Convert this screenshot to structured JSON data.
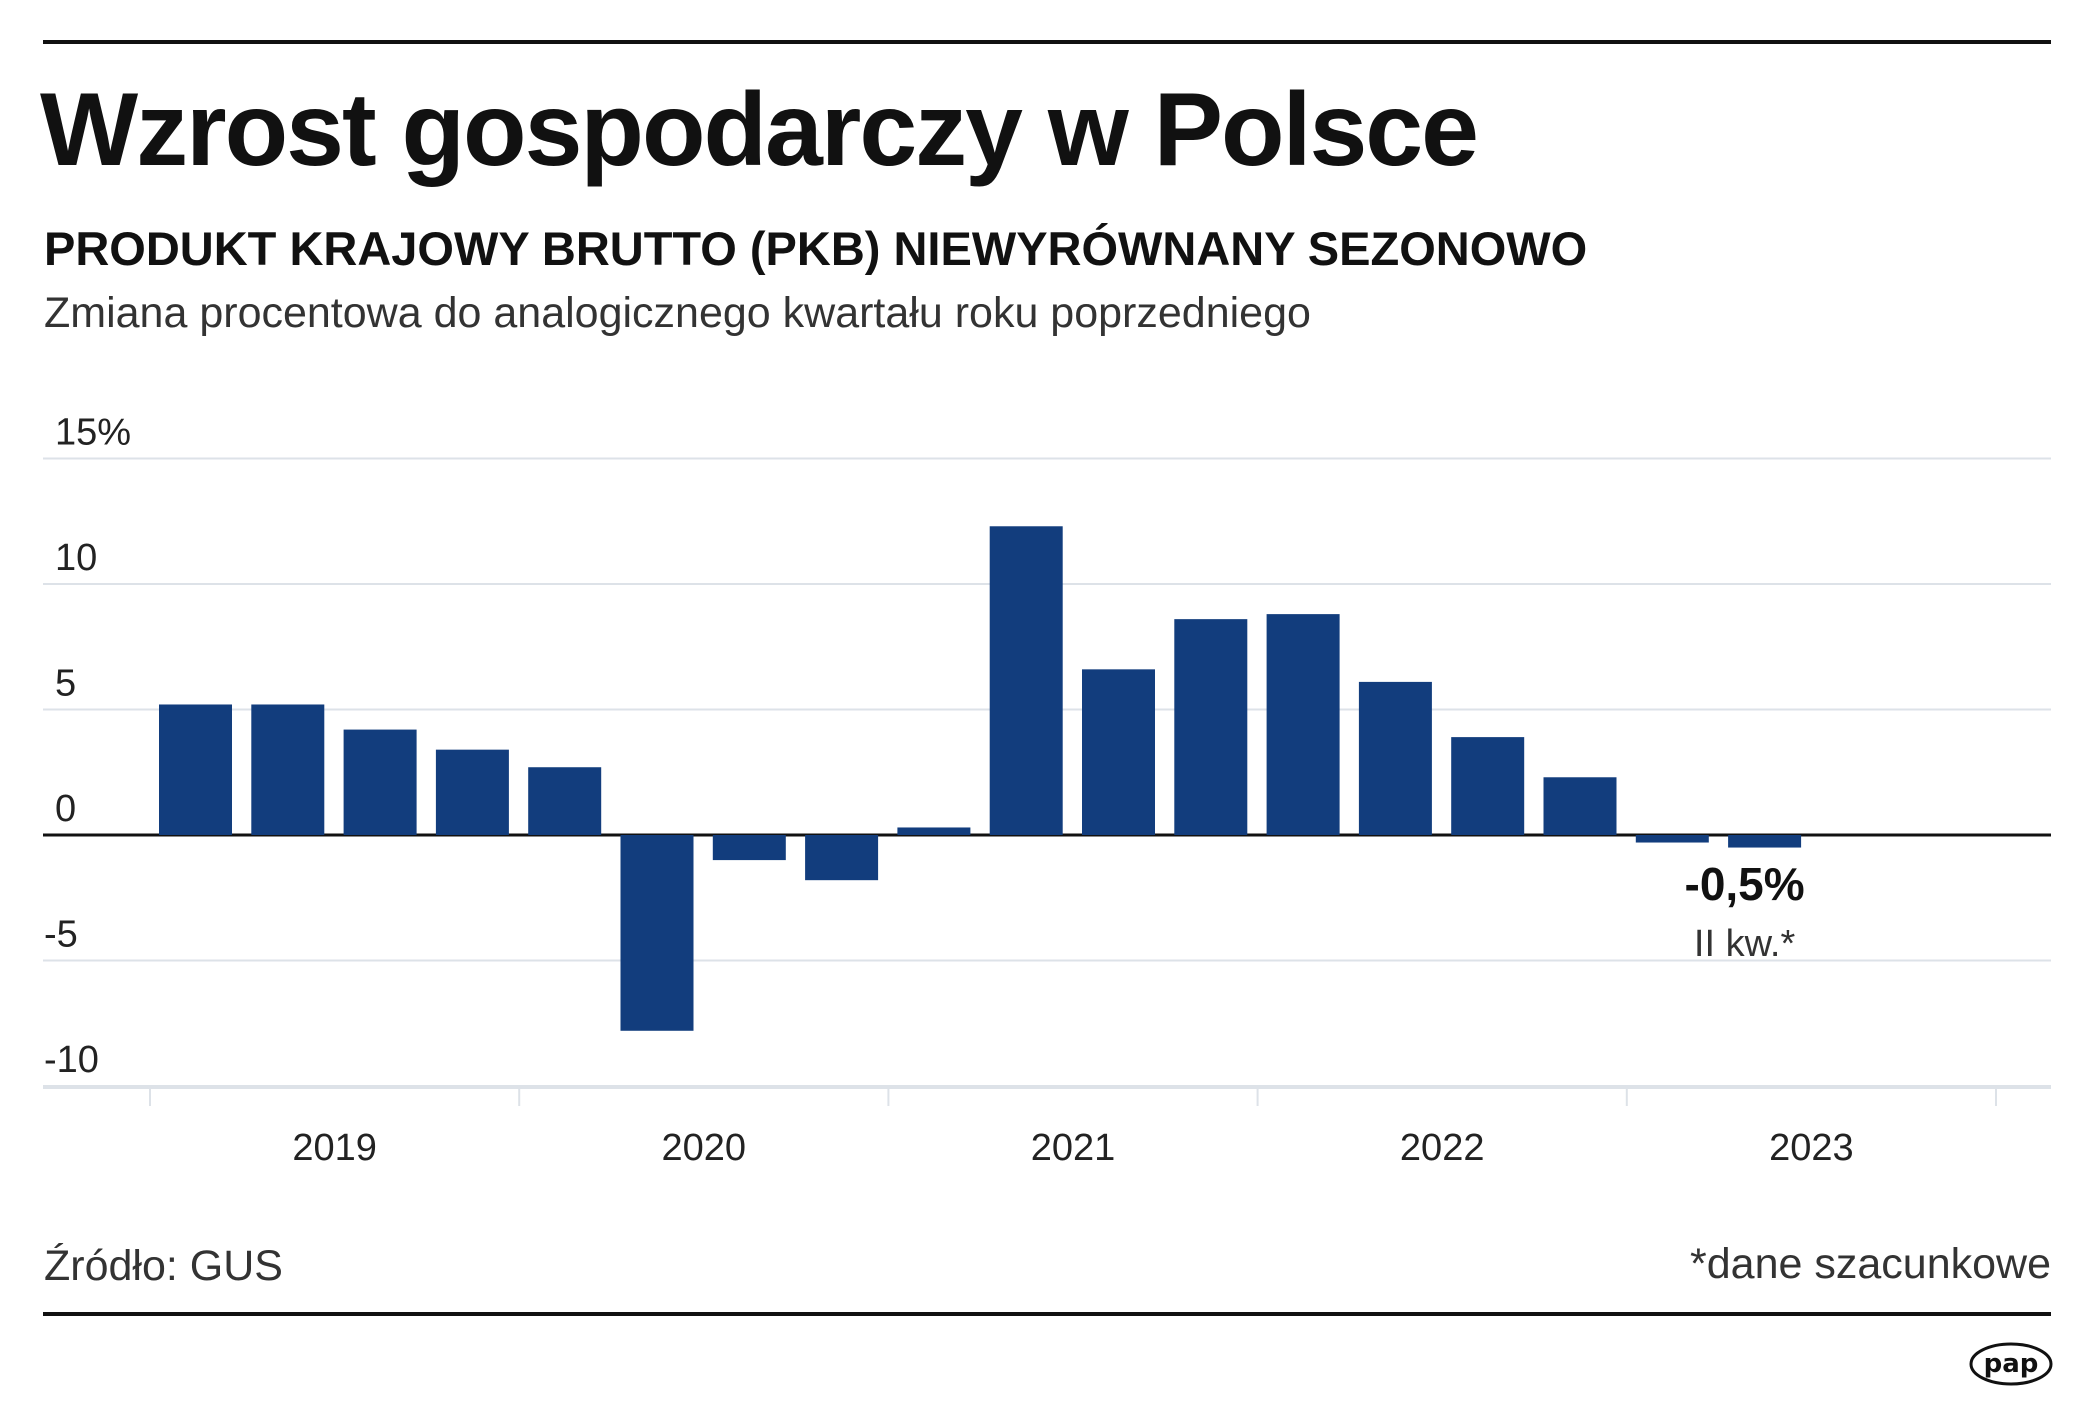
{
  "title": "Wzrost gospodarczy w Polsce",
  "subtitle": "PRODUKT KRAJOWY BRUTTO (PKB) NIEWYRÓWNANY SEZONOWO",
  "description": "Zmiana procentowa do analogicznego kwartału roku poprzedniego",
  "source": "Źródło: GUS",
  "footnote": "*dane szacunkowe",
  "logo": "pap",
  "chart_data": {
    "type": "bar",
    "bar_color": "#123d7d",
    "ylim": [
      -10,
      15
    ],
    "yticks": [
      {
        "value": 15,
        "label": "15%"
      },
      {
        "value": 10,
        "label": "10"
      },
      {
        "value": 5,
        "label": "5"
      },
      {
        "value": 0,
        "label": "0"
      },
      {
        "value": -5,
        "label": "-5"
      },
      {
        "value": -10,
        "label": "-10"
      }
    ],
    "grid": true,
    "year_labels": [
      "2019",
      "2020",
      "2021",
      "2022",
      "2023"
    ],
    "categories": [
      "2019 I",
      "2019 II",
      "2019 III",
      "2019 IV",
      "2020 I",
      "2020 II",
      "2020 III",
      "2020 IV",
      "2021 I",
      "2021 II",
      "2021 III",
      "2021 IV",
      "2022 I",
      "2022 II",
      "2022 III",
      "2022 IV",
      "2023 I",
      "2023 II"
    ],
    "values": [
      5.2,
      5.2,
      4.2,
      3.4,
      2.7,
      -7.8,
      -1.0,
      -1.8,
      0.3,
      12.3,
      6.6,
      8.6,
      8.8,
      6.1,
      3.9,
      2.3,
      -0.3,
      -0.5
    ],
    "annotation": {
      "value_label": "-0,5%",
      "period_label": "II kw.*"
    }
  }
}
